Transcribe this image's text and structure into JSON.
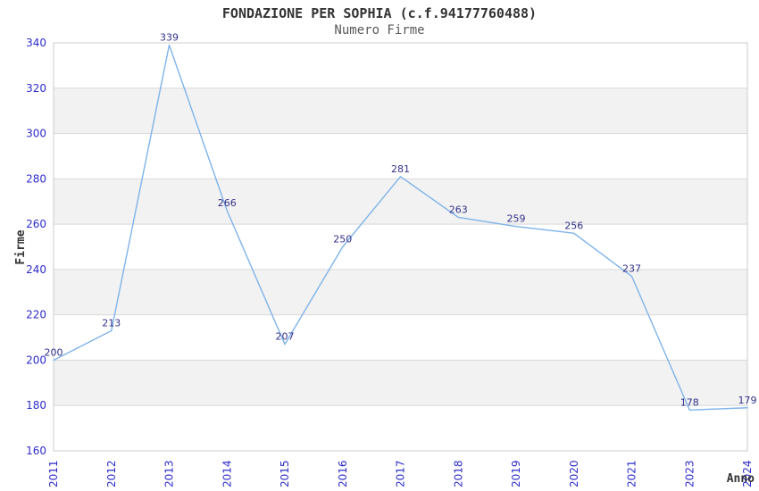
{
  "chart_data": {
    "type": "line",
    "title": "FONDAZIONE PER SOPHIA (c.f.94177760488)",
    "subtitle": "Numero Firme",
    "xlabel": "Anno",
    "ylabel": "Firme",
    "categories": [
      "2011",
      "2012",
      "2013",
      "2014",
      "2015",
      "2016",
      "2017",
      "2018",
      "2019",
      "2020",
      "2021",
      "2023",
      "2024"
    ],
    "values": [
      200,
      213,
      339,
      266,
      207,
      250,
      281,
      263,
      259,
      256,
      237,
      178,
      179
    ],
    "ylim": [
      160,
      340
    ],
    "ytick_step": 20,
    "grid": "horizontal-bands",
    "legend": "none",
    "data_labels": true,
    "x_tick_rotation": -90,
    "colors": {
      "line": "#7fb3e9",
      "tick_label": "#2d2dcb",
      "data_label": "#31318a",
      "band_alt": "#f2f2f2",
      "band_main": "#ffffff",
      "grid_line": "#d9d9d9",
      "plot_border": "#cccccc",
      "title": "#333333",
      "subtitle": "#595959",
      "axis_title": "#333333",
      "background": "#ffffff"
    }
  }
}
